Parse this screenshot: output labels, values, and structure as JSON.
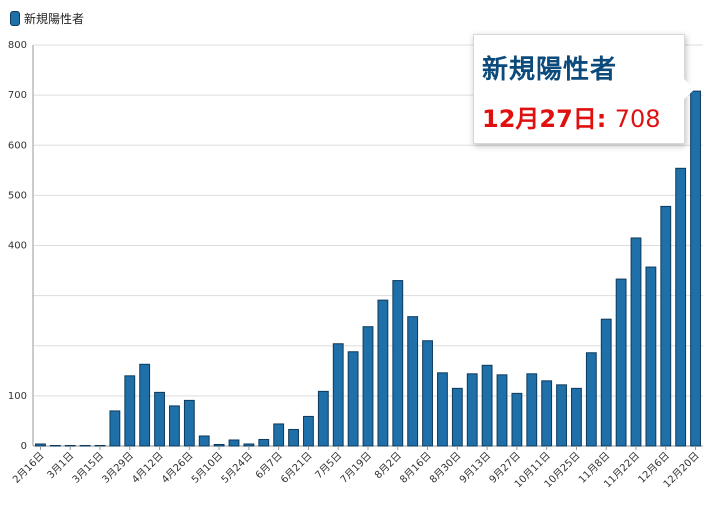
{
  "legend": {
    "label": "新規陽性者",
    "color": "#1f6fa8"
  },
  "tooltip": {
    "title": "新規陽性者",
    "date": "12月27日:",
    "value": "708"
  },
  "chart_data": {
    "type": "bar",
    "title": "",
    "xlabel": "",
    "ylabel": "",
    "ylim": [
      0,
      800
    ],
    "yticks": [
      0,
      100,
      400,
      500,
      600,
      700,
      800
    ],
    "gridlines": [
      0,
      100,
      200,
      300,
      400,
      500,
      600,
      700,
      800
    ],
    "grid": true,
    "legend_position": "top-left",
    "bar_color": "#1f6fa8",
    "bar_edge_color": "#0e3a5c",
    "x_tick_labels": [
      "2月16日",
      "3月1日",
      "3月15日",
      "3月29日",
      "4月12日",
      "4月26日",
      "5月10日",
      "5月24日",
      "6月7日",
      "6月21日",
      "7月5日",
      "7月19日",
      "8月2日",
      "8月16日",
      "8月30日",
      "9月13日",
      "9月27日",
      "10月11日",
      "10月25日",
      "11月8日",
      "11月22日",
      "12月6日",
      "12月20日"
    ],
    "x_tick_every": 2,
    "series": [
      {
        "name": "新規陽性者",
        "values": [
          4,
          1,
          1,
          1,
          1,
          70,
          140,
          163,
          107,
          80,
          91,
          20,
          3,
          12,
          4,
          13,
          44,
          33,
          59,
          109,
          204,
          188,
          238,
          291,
          330,
          258,
          210,
          146,
          115,
          144,
          161,
          142,
          105,
          144,
          130,
          122,
          115,
          186,
          253,
          333,
          415,
          357,
          478,
          554,
          708
        ]
      }
    ]
  }
}
